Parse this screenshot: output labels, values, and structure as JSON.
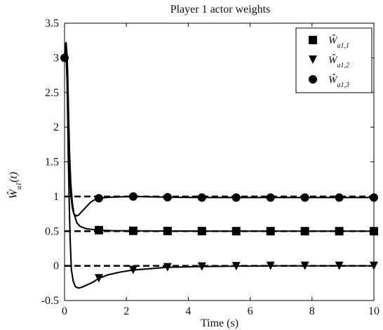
{
  "chart_data": {
    "type": "line",
    "title": "Player 1 actor weights",
    "xlabel": "Time (s)",
    "ylabel": "Ŵa1(t)",
    "ylabel_parts": {
      "main": "Ŵ",
      "sub": "a1",
      "suffix": "(t)"
    },
    "xlim": [
      0,
      10
    ],
    "ylim": [
      -0.5,
      3.5
    ],
    "xticks": [
      0,
      2,
      4,
      6,
      8,
      10
    ],
    "yticks": [
      -0.5,
      0,
      0.5,
      1,
      1.5,
      2,
      2.5,
      3,
      3.5
    ],
    "grid": false,
    "legend_position": "top-right",
    "series": [
      {
        "name": "Ŵa1,1",
        "legend_main": "Ŵ",
        "legend_sub": "a1,1",
        "marker": "square",
        "color": "#000000",
        "x": [
          0.0,
          0.02,
          0.05,
          0.08,
          0.1,
          0.13,
          0.16,
          0.2,
          0.25,
          0.3,
          0.4,
          0.5,
          0.7,
          1.0,
          1.11,
          1.5,
          2.22,
          3.33,
          4.44,
          5.55,
          6.66,
          7.77,
          8.88,
          10.0
        ],
        "y": [
          3.0,
          3.18,
          3.22,
          3.05,
          2.8,
          2.2,
          1.65,
          1.2,
          0.92,
          0.76,
          0.62,
          0.57,
          0.535,
          0.52,
          0.515,
          0.507,
          0.505,
          0.502,
          0.501,
          0.5,
          0.5,
          0.5,
          0.5,
          0.5
        ],
        "marker_x": [
          1.11,
          2.22,
          3.33,
          4.44,
          5.55,
          6.66,
          7.77,
          8.88,
          10.0
        ],
        "marker_y": [
          0.515,
          0.505,
          0.502,
          0.501,
          0.5,
          0.5,
          0.5,
          0.5,
          0.5
        ]
      },
      {
        "name": "Ŵa1,2",
        "legend_main": "Ŵ",
        "legend_sub": "a1,2",
        "marker": "triangle-down",
        "color": "#000000",
        "x": [
          0.0,
          0.02,
          0.05,
          0.08,
          0.1,
          0.12,
          0.15,
          0.18,
          0.22,
          0.28,
          0.35,
          0.45,
          0.55,
          0.7,
          0.9,
          1.11,
          1.4,
          1.8,
          2.22,
          2.8,
          3.33,
          4.0,
          4.44,
          5.55,
          6.66,
          7.77,
          8.88,
          10.0
        ],
        "y": [
          3.0,
          3.12,
          3.05,
          2.7,
          2.2,
          1.6,
          0.95,
          0.4,
          -0.05,
          -0.22,
          -0.3,
          -0.32,
          -0.31,
          -0.28,
          -0.24,
          -0.18,
          -0.13,
          -0.09,
          -0.06,
          -0.04,
          -0.02,
          -0.015,
          -0.01,
          -0.005,
          0.0,
          0.0,
          0.0,
          0.0
        ],
        "marker_x": [
          1.11,
          2.22,
          3.33,
          4.44,
          5.55,
          6.66,
          7.77,
          8.88,
          10.0
        ],
        "marker_y": [
          -0.18,
          -0.06,
          -0.02,
          -0.01,
          -0.005,
          0.0,
          0.0,
          0.0,
          0.0
        ]
      },
      {
        "name": "Ŵa1,3",
        "legend_main": "Ŵ",
        "legend_sub": "a1,3",
        "marker": "circle",
        "color": "#000000",
        "x": [
          0.0,
          0.02,
          0.05,
          0.08,
          0.1,
          0.13,
          0.16,
          0.2,
          0.25,
          0.3,
          0.38,
          0.45,
          0.55,
          0.7,
          0.85,
          1.0,
          1.11,
          1.5,
          2.22,
          3.33,
          4.44,
          5.55,
          6.66,
          7.77,
          8.88,
          10.0
        ],
        "y": [
          3.0,
          3.1,
          3.16,
          3.05,
          2.7,
          2.1,
          1.45,
          1.05,
          0.84,
          0.75,
          0.72,
          0.73,
          0.78,
          0.85,
          0.92,
          0.96,
          0.975,
          0.99,
          1.0,
          0.99,
          0.985,
          0.985,
          0.985,
          0.985,
          0.985,
          0.985
        ],
        "marker_x": [
          0.0,
          1.11,
          2.22,
          3.33,
          4.44,
          5.55,
          6.66,
          7.77,
          8.88,
          10.0
        ],
        "marker_y": [
          3.0,
          0.975,
          1.0,
          0.99,
          0.985,
          0.985,
          0.985,
          0.985,
          0.985,
          0.985
        ]
      }
    ],
    "reference_lines": [
      {
        "y": 1.0,
        "style": "dashed",
        "color": "#000000"
      },
      {
        "y": 0.5,
        "style": "dashed",
        "color": "#000000"
      },
      {
        "y": 0.0,
        "style": "dashed",
        "color": "#000000"
      }
    ]
  }
}
